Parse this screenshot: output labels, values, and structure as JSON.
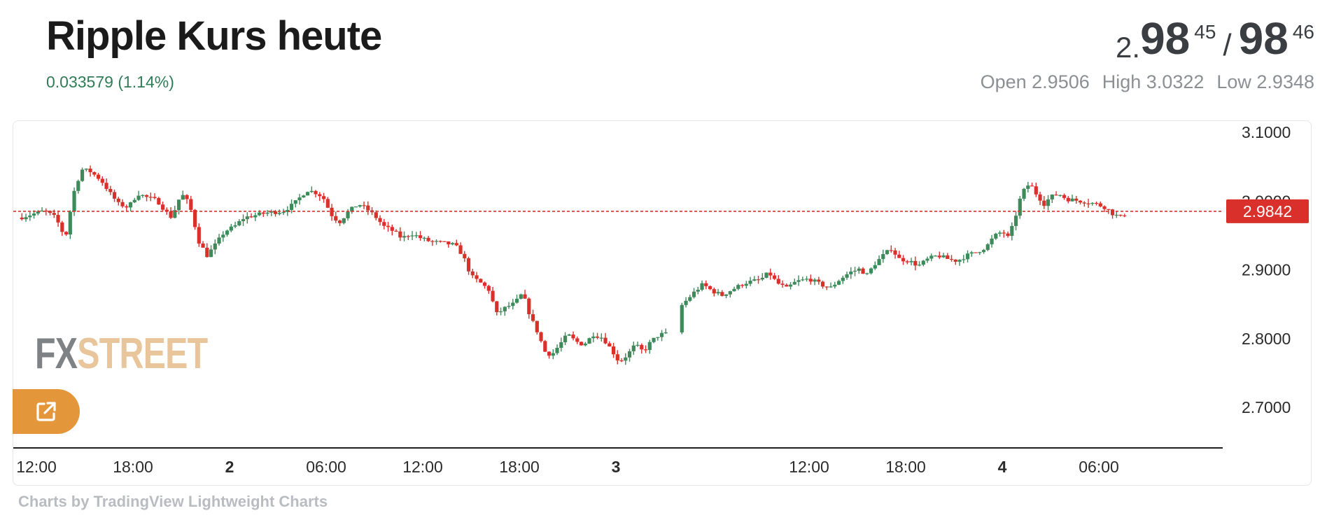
{
  "header": {
    "title": "Ripple Kurs heute",
    "change": "0.033579 (1.14%)"
  },
  "quote": {
    "prefix": "2.",
    "bid_big": "98",
    "bid_small": "45",
    "separator": "/",
    "ask_big": "98",
    "ask_small": "46"
  },
  "ohl": {
    "open": "Open 2.9506",
    "high": "High 3.0322",
    "low": "Low 2.9348"
  },
  "logo": {
    "fx": "FX",
    "street": "STREET"
  },
  "credit": "Charts by TradingView Lightweight Charts",
  "icons": {
    "open_external": "external-link-icon"
  },
  "colors": {
    "up": "#3d8a5b",
    "down": "#d9302c",
    "price_line": "#d9302c",
    "label_bg": "#d9302c",
    "accent": "#e3963a"
  },
  "chart_data": {
    "type": "candlestick",
    "symbol": "XRP",
    "y_ticks": [
      "3.1000",
      "3.0000",
      "2.9000",
      "2.8000",
      "2.7000"
    ],
    "ylim": [
      2.68,
      3.12
    ],
    "x_ticks": [
      {
        "label": "12:00",
        "t": 0,
        "bold": false
      },
      {
        "label": "18:00",
        "t": 6,
        "bold": false
      },
      {
        "label": "2",
        "t": 12,
        "bold": true
      },
      {
        "label": "06:00",
        "t": 18,
        "bold": false
      },
      {
        "label": "12:00",
        "t": 24,
        "bold": false
      },
      {
        "label": "18:00",
        "t": 30,
        "bold": false
      },
      {
        "label": "3",
        "t": 36,
        "bold": true
      },
      {
        "label": "12:00",
        "t": 48,
        "bold": false
      },
      {
        "label": "18:00",
        "t": 54,
        "bold": false
      },
      {
        "label": "4",
        "t": 60,
        "bold": true
      },
      {
        "label": "06:00",
        "t": 66,
        "bold": false
      }
    ],
    "current_price": "2.9842",
    "current_value": 2.9842,
    "path": [
      [
        -1,
        2.975
      ],
      [
        0.5,
        2.985
      ],
      [
        1.2,
        2.975
      ],
      [
        1.8,
        2.945
      ],
      [
        2.3,
        3.01
      ],
      [
        2.8,
        3.045
      ],
      [
        3.3,
        3.043
      ],
      [
        4.0,
        3.03
      ],
      [
        4.6,
        3.01
      ],
      [
        5.1,
        2.995
      ],
      [
        5.7,
        2.99
      ],
      [
        6.3,
        3.01
      ],
      [
        6.8,
        3.005
      ],
      [
        7.5,
        3.0
      ],
      [
        8.0,
        2.985
      ],
      [
        8.4,
        2.975
      ],
      [
        9.0,
        3.01
      ],
      [
        9.5,
        2.995
      ],
      [
        10.1,
        2.94
      ],
      [
        10.6,
        2.92
      ],
      [
        11.1,
        2.935
      ],
      [
        11.7,
        2.955
      ],
      [
        12.3,
        2.962
      ],
      [
        12.9,
        2.975
      ],
      [
        13.5,
        2.978
      ],
      [
        14.3,
        2.982
      ],
      [
        15.3,
        2.984
      ],
      [
        16.0,
        2.995
      ],
      [
        16.8,
        3.015
      ],
      [
        17.3,
        3.012
      ],
      [
        17.8,
        3.005
      ],
      [
        18.3,
        2.98
      ],
      [
        18.8,
        2.968
      ],
      [
        19.4,
        2.984
      ],
      [
        20.0,
        2.995
      ],
      [
        20.5,
        2.988
      ],
      [
        21.0,
        2.978
      ],
      [
        21.6,
        2.962
      ],
      [
        22.2,
        2.955
      ],
      [
        22.7,
        2.945
      ],
      [
        23.3,
        2.952
      ],
      [
        23.9,
        2.945
      ],
      [
        24.5,
        2.94
      ],
      [
        25.3,
        2.938
      ],
      [
        26.0,
        2.935
      ],
      [
        26.5,
        2.92
      ],
      [
        27.0,
        2.89
      ],
      [
        27.6,
        2.88
      ],
      [
        28.1,
        2.87
      ],
      [
        28.6,
        2.835
      ],
      [
        29.2,
        2.845
      ],
      [
        29.7,
        2.85
      ],
      [
        30.2,
        2.865
      ],
      [
        30.7,
        2.83
      ],
      [
        31.1,
        2.81
      ],
      [
        31.6,
        2.78
      ],
      [
        32.0,
        2.775
      ],
      [
        32.5,
        2.79
      ],
      [
        33.0,
        2.805
      ],
      [
        33.5,
        2.795
      ],
      [
        34.0,
        2.79
      ],
      [
        34.6,
        2.805
      ],
      [
        35.2,
        2.8
      ],
      [
        35.8,
        2.78
      ],
      [
        36.2,
        2.765
      ],
      [
        36.7,
        2.775
      ],
      [
        37.2,
        2.79
      ],
      [
        37.7,
        2.78
      ],
      [
        38.2,
        2.795
      ],
      [
        38.7,
        2.805
      ],
      [
        39.2,
        2.806
      ],
      [
        39.3,
        2.83
      ],
      [
        40.0,
        2.845
      ],
      [
        40.8,
        2.865
      ],
      [
        41.4,
        2.878
      ],
      [
        42.0,
        2.868
      ],
      [
        42.6,
        2.862
      ],
      [
        43.2,
        2.87
      ],
      [
        44.0,
        2.88
      ],
      [
        45.0,
        2.885
      ],
      [
        45.5,
        2.895
      ],
      [
        46.0,
        2.88
      ],
      [
        46.6,
        2.872
      ],
      [
        47.2,
        2.882
      ],
      [
        48.0,
        2.886
      ],
      [
        48.7,
        2.878
      ],
      [
        49.3,
        2.872
      ],
      [
        49.9,
        2.885
      ],
      [
        50.5,
        2.895
      ],
      [
        51.1,
        2.9
      ],
      [
        51.6,
        2.892
      ],
      [
        52.1,
        2.908
      ],
      [
        52.6,
        2.92
      ],
      [
        53.1,
        2.93
      ],
      [
        53.6,
        2.915
      ],
      [
        54.2,
        2.912
      ],
      [
        54.8,
        2.905
      ],
      [
        55.4,
        2.915
      ],
      [
        56.0,
        2.92
      ],
      [
        56.6,
        2.915
      ],
      [
        57.2,
        2.912
      ],
      [
        57.8,
        2.92
      ],
      [
        58.4,
        2.925
      ],
      [
        59.0,
        2.932
      ],
      [
        59.5,
        2.948
      ],
      [
        60.0,
        2.955
      ],
      [
        60.4,
        2.945
      ],
      [
        60.8,
        2.975
      ],
      [
        61.2,
        3.01
      ],
      [
        61.7,
        3.025
      ],
      [
        62.1,
        3.01
      ],
      [
        62.6,
        2.995
      ],
      [
        63.0,
        3.005
      ],
      [
        63.5,
        3.01
      ],
      [
        64.0,
        3.002
      ],
      [
        64.6,
        3.0
      ],
      [
        65.2,
        2.998
      ],
      [
        65.8,
        2.995
      ],
      [
        66.4,
        2.99
      ],
      [
        66.9,
        2.98
      ],
      [
        67.4,
        2.975
      ],
      [
        67.8,
        2.985
      ]
    ]
  }
}
